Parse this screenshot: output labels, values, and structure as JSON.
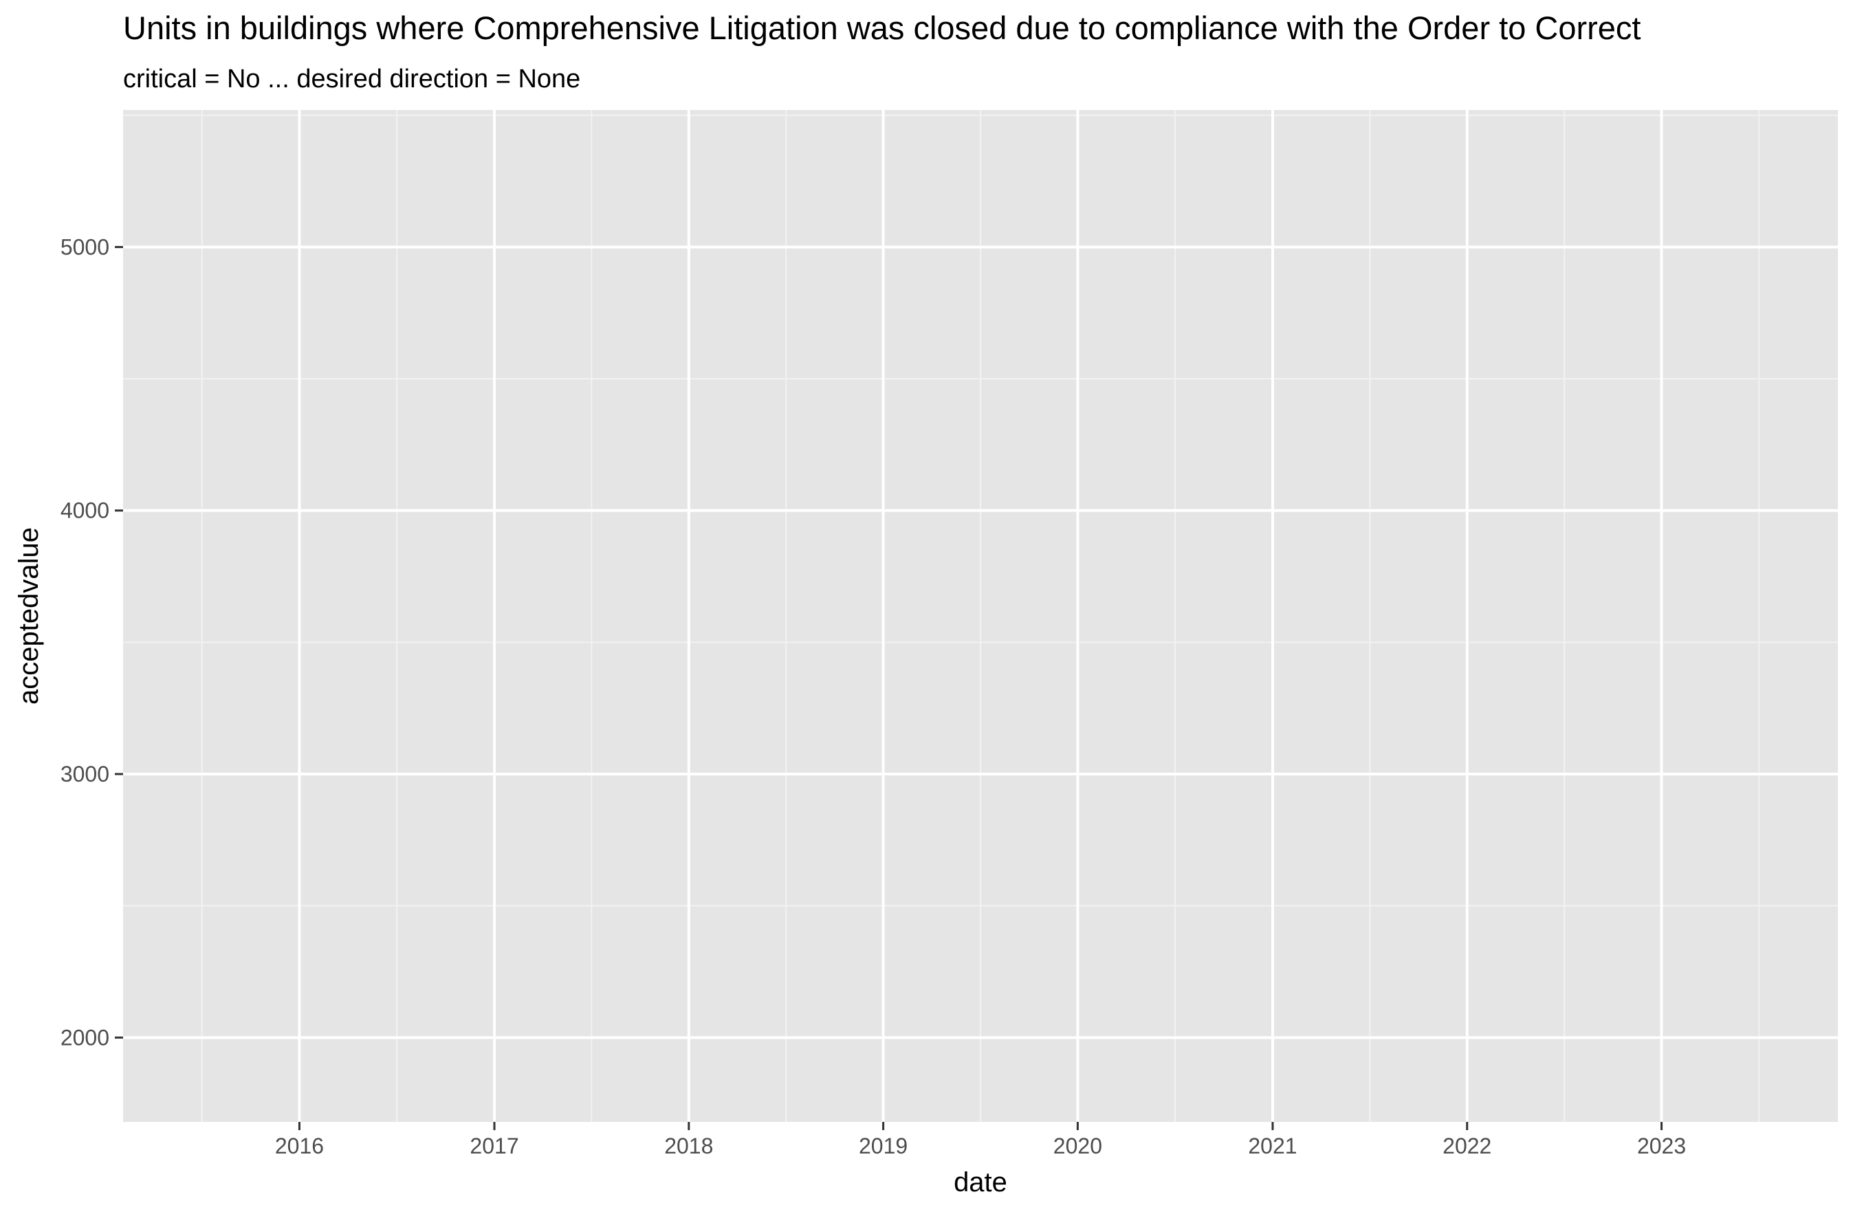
{
  "chart_data": {
    "type": "line",
    "title": "Units in buildings where Comprehensive Litigation was closed due to compliance with the Order to Correct",
    "subtitle": "critical = No ... desired direction = None",
    "xlabel": "date",
    "ylabel": "acceptedvalue",
    "x_ticks": [
      "2016",
      "2017",
      "2018",
      "2019",
      "2020",
      "2021",
      "2022",
      "2023"
    ],
    "y_ticks": [
      2000,
      3000,
      4000,
      5000
    ],
    "xlim": [
      "2015-02-04",
      "2023-11-28"
    ],
    "ylim": [
      1680,
      5520
    ],
    "grid": true,
    "series": [],
    "colors": {
      "panel_background": "#e5e5e5",
      "grid_major": "#ffffff",
      "grid_minor": "#f2f2f2",
      "tick_mark": "#333333",
      "tick_label": "#4d4d4d"
    }
  }
}
